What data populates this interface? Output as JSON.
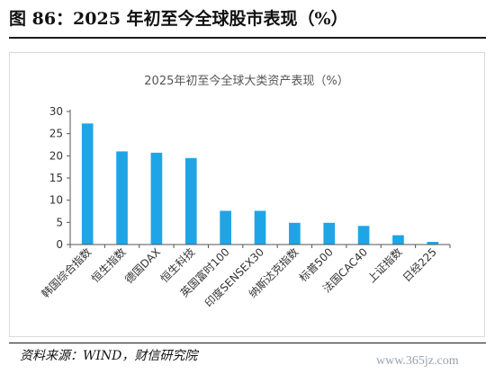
{
  "figure": {
    "title": "图 86：2025 年初至今全球股市表现（%）",
    "source": "资料来源：WIND，财信研究院",
    "watermark": "www.365jz.com"
  },
  "chart_data": {
    "type": "bar",
    "title": "2025年初至今全球大类资产表现（%）",
    "xlabel": "",
    "ylabel": "",
    "categories": [
      "韩国综合指数",
      "恒生指数",
      "德国DAX",
      "恒生科技",
      "英国富时100",
      "印度SENSEX30",
      "纳斯达克指数",
      "标普500",
      "法国CAC40",
      "上证指数",
      "日经225"
    ],
    "values": [
      27.3,
      21.0,
      20.7,
      19.5,
      7.6,
      7.6,
      4.9,
      4.9,
      4.2,
      2.1,
      0.6
    ],
    "ylim": [
      0,
      30
    ],
    "yticks": [
      0,
      5,
      10,
      15,
      20,
      25,
      30
    ],
    "grid": false,
    "legend": "none",
    "bar_color": "#1fa5e6"
  }
}
